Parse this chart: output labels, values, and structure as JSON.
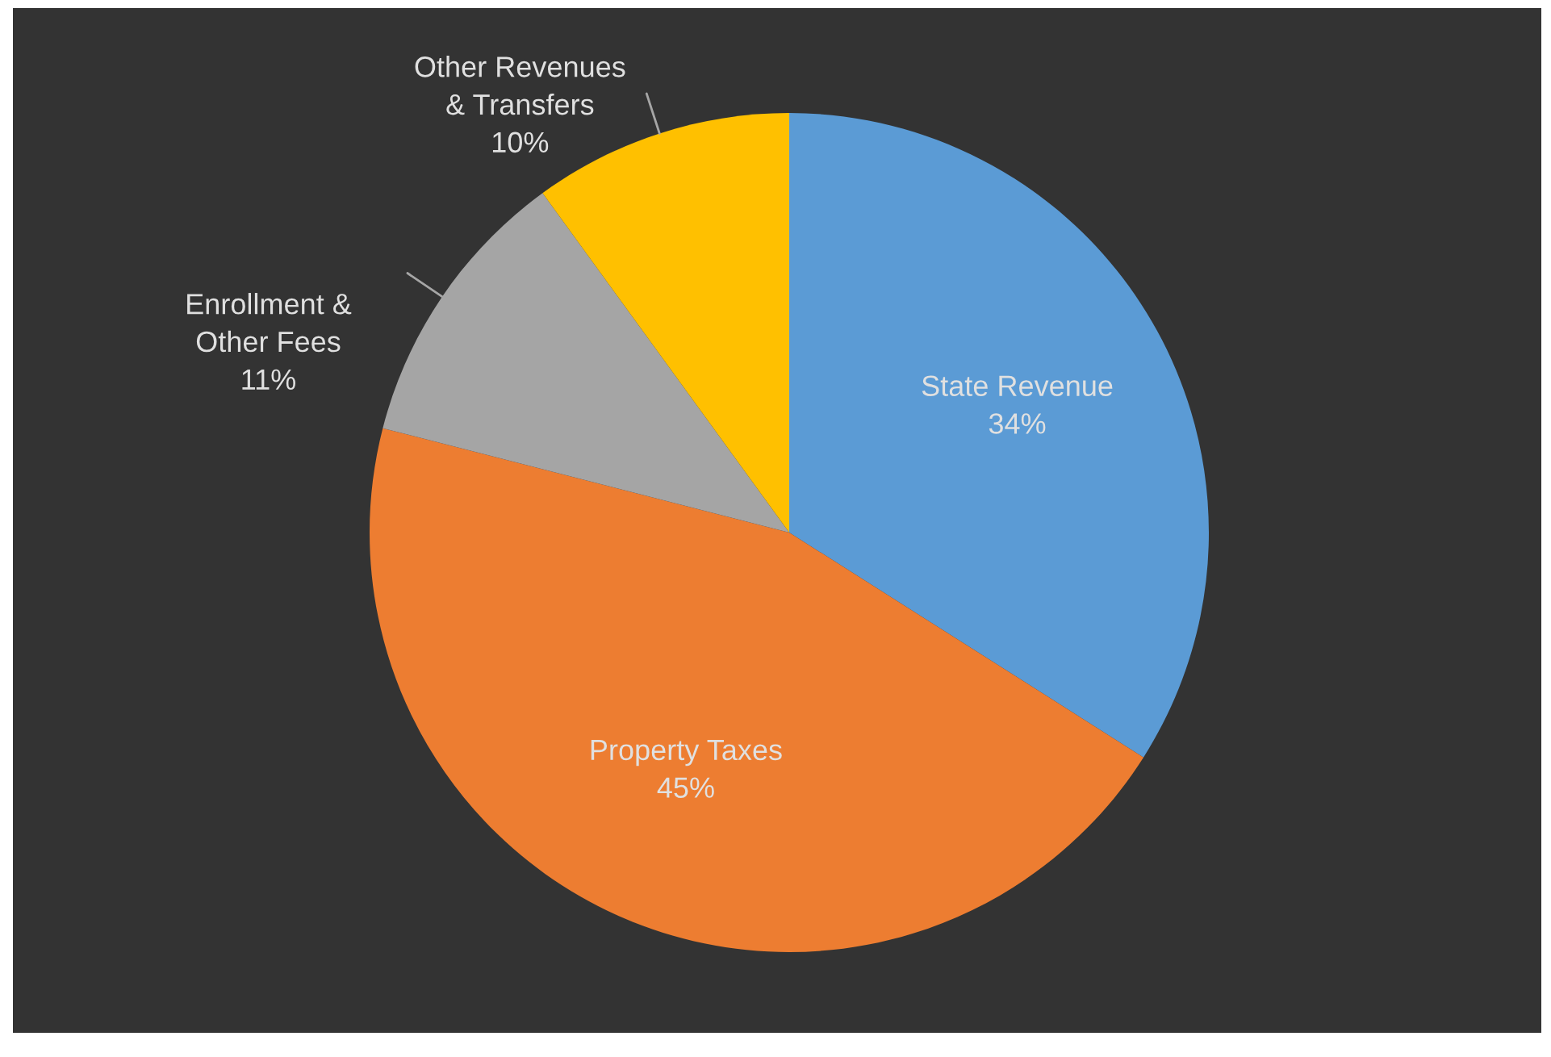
{
  "chart_data": {
    "type": "pie",
    "categories": [
      "State Revenue",
      "Property Taxes",
      "Enrollment & Other Fees",
      "Other Revenues & Transfers"
    ],
    "values": [
      34,
      45,
      11,
      10
    ],
    "value_labels": [
      "34%",
      "45%",
      "11%",
      "10%"
    ],
    "colors": [
      "#5b9bd5",
      "#ed7d31",
      "#a5a5a5",
      "#ffc000"
    ]
  }
}
